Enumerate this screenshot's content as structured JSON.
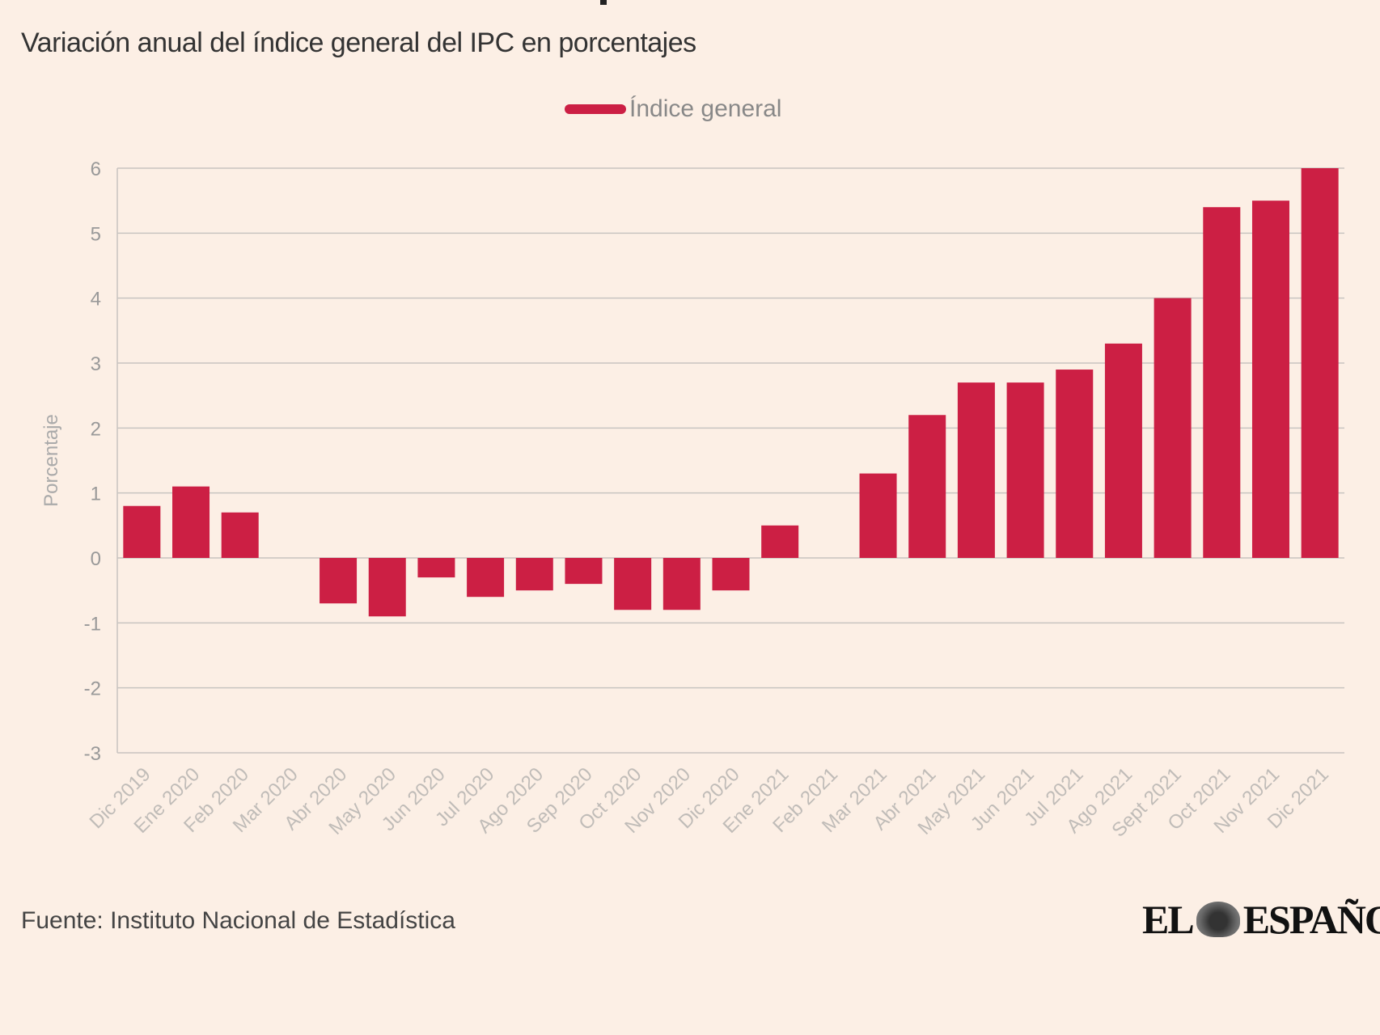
{
  "subtitle": "Variación anual del índice general del IPC en porcentajes",
  "footer": {
    "source": "Fuente: Instituto Nacional de Estadística",
    "logo_text": "EL ESPAÑOL"
  },
  "colors": {
    "bar": "#cc1f44",
    "background": "#fcefe5",
    "grid": "#c8c4c0"
  },
  "chart_data": {
    "type": "bar",
    "title": "",
    "subtitle": "Variación anual del índice general del IPC en porcentajes",
    "xlabel": "",
    "ylabel": "Porcentaje",
    "ylim": [
      -3,
      6
    ],
    "yticks": [
      -3,
      -2,
      -1,
      0,
      1,
      2,
      3,
      4,
      5,
      6
    ],
    "grid": true,
    "legend_position": "top-center",
    "categories": [
      "Dic 2019",
      "Ene 2020",
      "Feb 2020",
      "Mar 2020",
      "Abr 2020",
      "May 2020",
      "Jun 2020",
      "Jul 2020",
      "Ago 2020",
      "Sep 2020",
      "Oct 2020",
      "Nov 2020",
      "Dic 2020",
      "Ene 2021",
      "Feb 2021",
      "Mar 2021",
      "Abr 2021",
      "May 2021",
      "Jun 2021",
      "Jul 2021",
      "Ago 2021",
      "Sept 2021",
      "Oct 2021",
      "Nov 2021",
      "Dic 2021"
    ],
    "series": [
      {
        "name": "Índice general",
        "values": [
          0.8,
          1.1,
          0.7,
          0,
          -0.7,
          -0.9,
          -0.3,
          -0.6,
          -0.5,
          -0.4,
          -0.8,
          -0.8,
          -0.5,
          0.5,
          0,
          1.3,
          2.2,
          2.7,
          2.7,
          2.9,
          3.3,
          4.0,
          5.4,
          5.5,
          6.0
        ]
      }
    ]
  }
}
